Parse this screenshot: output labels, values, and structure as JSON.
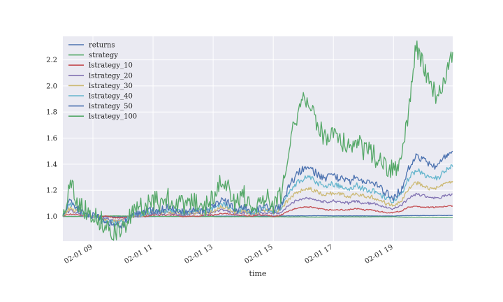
{
  "chart_data": {
    "type": "line",
    "title": "",
    "xlabel": "time",
    "ylabel": "",
    "xlim": [
      8.0,
      20.97
    ],
    "ylim": [
      0.81,
      2.38
    ],
    "grid": true,
    "legend_position": "top-left",
    "x_ticks": [
      {
        "x": 9,
        "label": "02-01 09"
      },
      {
        "x": 11,
        "label": "02-01 11"
      },
      {
        "x": 13,
        "label": "02-01 13"
      },
      {
        "x": 15,
        "label": "02-01 15"
      },
      {
        "x": 17,
        "label": "02-01 17"
      },
      {
        "x": 19,
        "label": "02-01 19"
      }
    ],
    "y_ticks": [
      {
        "y": 1.0,
        "label": "1.0"
      },
      {
        "y": 1.2,
        "label": "1.2"
      },
      {
        "y": 1.4,
        "label": "1.4"
      },
      {
        "y": 1.6,
        "label": "1.6"
      },
      {
        "y": 1.8,
        "label": "1.8"
      },
      {
        "y": 2.0,
        "label": "2.0"
      },
      {
        "y": 2.2,
        "label": "2.2"
      }
    ],
    "x": [
      8.0,
      8.25,
      8.5,
      8.75,
      9.0,
      9.25,
      9.5,
      9.75,
      10.0,
      10.25,
      10.5,
      10.75,
      11.0,
      11.25,
      11.5,
      11.75,
      12.0,
      12.25,
      12.5,
      12.75,
      13.0,
      13.25,
      13.5,
      13.75,
      14.0,
      14.25,
      14.5,
      14.75,
      15.0,
      15.25,
      15.5,
      15.75,
      16.0,
      16.25,
      16.5,
      16.75,
      17.0,
      17.25,
      17.5,
      17.75,
      18.0,
      18.25,
      18.5,
      18.75,
      19.0,
      19.25,
      19.5,
      19.75,
      20.0,
      20.25,
      20.5,
      20.75,
      20.97
    ],
    "series": [
      {
        "name": "returns",
        "color": "#4c72b0",
        "values": [
          1.0,
          1.0,
          1.0,
          1.0,
          0.998,
          0.998,
          0.997,
          0.996,
          0.997,
          0.998,
          0.998,
          0.999,
          0.999,
          1.0,
          1.0,
          1.0,
          1.0,
          1.0,
          1.001,
          1.001,
          1.001,
          1.002,
          1.002,
          1.002,
          1.002,
          1.002,
          1.002,
          1.003,
          1.003,
          1.003,
          1.004,
          1.004,
          1.004,
          1.005,
          1.005,
          1.005,
          1.004,
          1.004,
          1.004,
          1.004,
          1.004,
          1.004,
          1.003,
          1.003,
          1.003,
          1.005,
          1.006,
          1.006,
          1.006,
          1.006,
          1.007,
          1.007,
          1.007
        ]
      },
      {
        "name": "strategy",
        "color": "#55a868",
        "values": [
          1.0,
          1.0,
          1.0,
          1.0,
          1.002,
          1.002,
          1.003,
          1.004,
          1.003,
          1.002,
          1.002,
          1.001,
          1.001,
          1.0,
          1.0,
          1.0,
          1.0,
          1.0,
          0.999,
          0.999,
          0.999,
          0.998,
          0.998,
          0.998,
          0.998,
          0.998,
          0.998,
          0.997,
          0.997,
          0.997,
          0.996,
          0.996,
          0.996,
          0.995,
          0.995,
          0.995,
          0.996,
          0.996,
          0.996,
          0.996,
          0.996,
          0.996,
          0.997,
          0.997,
          0.997,
          0.995,
          0.994,
          0.994,
          0.994,
          0.994,
          0.993,
          0.993,
          0.993
        ]
      },
      {
        "name": "lstrategy_10",
        "color": "#c44e52",
        "values": [
          1.0,
          1.02,
          1.01,
          1.0,
          1.0,
          1.0,
          1.0,
          0.99,
          0.99,
          1.0,
          1.0,
          1.0,
          1.01,
          1.01,
          1.01,
          1.01,
          1.0,
          1.0,
          1.0,
          1.01,
          1.01,
          1.02,
          1.02,
          1.01,
          1.01,
          1.0,
          1.01,
          1.01,
          1.0,
          1.01,
          1.04,
          1.06,
          1.07,
          1.07,
          1.06,
          1.05,
          1.05,
          1.05,
          1.05,
          1.06,
          1.05,
          1.05,
          1.04,
          1.03,
          1.03,
          1.04,
          1.07,
          1.08,
          1.07,
          1.07,
          1.07,
          1.08,
          1.08
        ]
      },
      {
        "name": "lstrategy_20",
        "color": "#8172b2",
        "values": [
          1.0,
          1.05,
          1.02,
          1.0,
          1.0,
          0.99,
          0.98,
          0.97,
          0.97,
          1.0,
          1.0,
          1.01,
          1.02,
          1.02,
          1.03,
          1.02,
          1.01,
          1.02,
          1.02,
          1.01,
          1.03,
          1.05,
          1.04,
          1.02,
          1.03,
          1.02,
          1.02,
          1.03,
          1.02,
          1.03,
          1.08,
          1.12,
          1.14,
          1.14,
          1.12,
          1.11,
          1.12,
          1.11,
          1.1,
          1.12,
          1.1,
          1.1,
          1.09,
          1.07,
          1.06,
          1.08,
          1.14,
          1.17,
          1.16,
          1.14,
          1.14,
          1.16,
          1.17
        ]
      },
      {
        "name": "lstrategy_30",
        "color": "#ccb974",
        "values": [
          1.0,
          1.07,
          1.03,
          1.01,
          1.0,
          0.99,
          0.97,
          0.96,
          0.96,
          1.0,
          1.01,
          1.02,
          1.03,
          1.03,
          1.04,
          1.03,
          1.02,
          1.03,
          1.03,
          1.02,
          1.04,
          1.08,
          1.06,
          1.03,
          1.05,
          1.02,
          1.03,
          1.05,
          1.03,
          1.05,
          1.13,
          1.18,
          1.21,
          1.21,
          1.18,
          1.17,
          1.18,
          1.17,
          1.15,
          1.18,
          1.16,
          1.15,
          1.13,
          1.1,
          1.09,
          1.12,
          1.21,
          1.26,
          1.24,
          1.21,
          1.22,
          1.25,
          1.27
        ]
      },
      {
        "name": "lstrategy_40",
        "color": "#64b5cd",
        "values": [
          1.0,
          1.1,
          1.05,
          1.01,
          1.0,
          0.98,
          0.96,
          0.95,
          0.95,
          1.0,
          1.01,
          1.03,
          1.04,
          1.04,
          1.05,
          1.04,
          1.03,
          1.04,
          1.04,
          1.03,
          1.06,
          1.1,
          1.08,
          1.04,
          1.06,
          1.03,
          1.04,
          1.06,
          1.04,
          1.06,
          1.17,
          1.25,
          1.29,
          1.29,
          1.25,
          1.23,
          1.25,
          1.23,
          1.21,
          1.24,
          1.21,
          1.2,
          1.18,
          1.14,
          1.12,
          1.16,
          1.29,
          1.36,
          1.33,
          1.29,
          1.3,
          1.35,
          1.38
        ]
      },
      {
        "name": "lstrategy_50",
        "color": "#4c72b0",
        "values": [
          1.0,
          1.12,
          1.06,
          1.02,
          1.0,
          0.98,
          0.95,
          0.93,
          0.93,
          1.0,
          1.02,
          1.04,
          1.05,
          1.05,
          1.07,
          1.05,
          1.04,
          1.05,
          1.05,
          1.04,
          1.07,
          1.13,
          1.1,
          1.05,
          1.08,
          1.04,
          1.05,
          1.08,
          1.05,
          1.08,
          1.22,
          1.31,
          1.37,
          1.36,
          1.32,
          1.29,
          1.31,
          1.29,
          1.26,
          1.3,
          1.27,
          1.26,
          1.23,
          1.18,
          1.15,
          1.2,
          1.37,
          1.47,
          1.43,
          1.38,
          1.4,
          1.46,
          1.5
        ]
      },
      {
        "name": "lstrategy_100",
        "color": "#55a868",
        "values": [
          1.0,
          1.26,
          1.12,
          1.05,
          1.01,
          0.97,
          0.92,
          0.88,
          0.89,
          1.0,
          1.05,
          1.09,
          1.12,
          1.11,
          1.14,
          1.11,
          1.08,
          1.11,
          1.11,
          1.07,
          1.15,
          1.3,
          1.21,
          1.1,
          1.17,
          1.08,
          1.1,
          1.17,
          1.1,
          1.17,
          1.52,
          1.75,
          1.88,
          1.85,
          1.68,
          1.6,
          1.65,
          1.59,
          1.52,
          1.58,
          1.51,
          1.5,
          1.42,
          1.37,
          1.36,
          1.42,
          1.8,
          2.3,
          2.15,
          1.98,
          1.92,
          2.1,
          2.26
        ]
      }
    ]
  }
}
